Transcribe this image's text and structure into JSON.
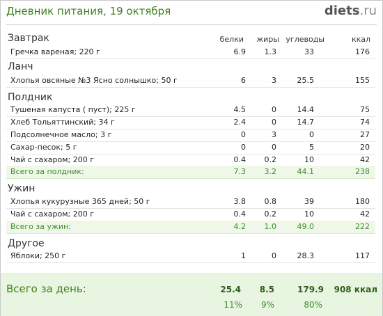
{
  "header": {
    "title": "Дневник питания, 19 октября",
    "logo_main": "diets",
    "logo_tld": ".ru"
  },
  "columns": {
    "protein": "белки",
    "fat": "жиры",
    "carbs": "углеводы",
    "kcal": "ккал"
  },
  "meals": {
    "breakfast": {
      "title": "Завтрак",
      "items": [
        {
          "name": "Гречка вареная; 220 г",
          "protein": "6.9",
          "fat": "1.3",
          "carbs": "33",
          "kcal": "176"
        }
      ]
    },
    "lunch": {
      "title": "Ланч",
      "items": [
        {
          "name": "Хлопья овсяные №3 Ясно солнышко; 50 г",
          "protein": "6",
          "fat": "3",
          "carbs": "25.5",
          "kcal": "155"
        }
      ]
    },
    "snack": {
      "title": "Полдник",
      "items": [
        {
          "name": "Тушеная капуста ( пуст); 225 г",
          "protein": "4.5",
          "fat": "0",
          "carbs": "14.4",
          "kcal": "75"
        },
        {
          "name": "Хлеб Тольяттинский; 34 г",
          "protein": "2.4",
          "fat": "0",
          "carbs": "14.7",
          "kcal": "74"
        },
        {
          "name": "Подсолнечное масло; 3 г",
          "protein": "0",
          "fat": "3",
          "carbs": "0",
          "kcal": "27"
        },
        {
          "name": "Сахар-песок; 5 г",
          "protein": "0",
          "fat": "0",
          "carbs": "5",
          "kcal": "20"
        },
        {
          "name": "Чай с сахаром; 200 г",
          "protein": "0.4",
          "fat": "0.2",
          "carbs": "10",
          "kcal": "42"
        }
      ],
      "total": {
        "label": "Всего за полдник:",
        "protein": "7.3",
        "fat": "3.2",
        "carbs": "44.1",
        "kcal": "238"
      }
    },
    "dinner": {
      "title": "Ужин",
      "items": [
        {
          "name": "Хлопья кукурузные 365 дней; 50 г",
          "protein": "3.8",
          "fat": "0.8",
          "carbs": "39",
          "kcal": "180"
        },
        {
          "name": "Чай с сахаром; 200 г",
          "protein": "0.4",
          "fat": "0.2",
          "carbs": "10",
          "kcal": "42"
        }
      ],
      "total": {
        "label": "Всего за ужин:",
        "protein": "4.2",
        "fat": "1.0",
        "carbs": "49.0",
        "kcal": "222"
      }
    },
    "other": {
      "title": "Другое",
      "items": [
        {
          "name": "Яблоки; 250 г",
          "protein": "1",
          "fat": "0",
          "carbs": "28.3",
          "kcal": "117"
        }
      ]
    }
  },
  "day_total": {
    "label": "Всего за день:",
    "protein": "25.4",
    "fat": "8.5",
    "carbs": "179.9",
    "kcal": "908 ккал",
    "protein_pct": "11%",
    "fat_pct": "9%",
    "carbs_pct": "80%"
  }
}
